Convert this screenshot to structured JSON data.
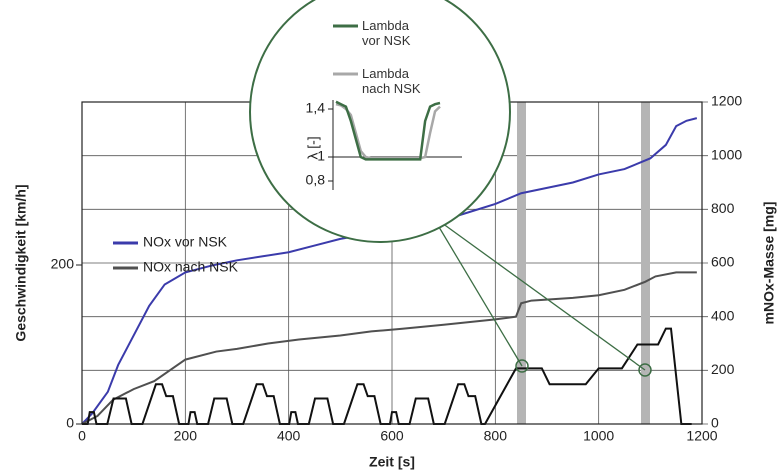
{
  "chart_data": [
    {
      "type": "line",
      "xlabel": "Zeit [s]",
      "ylabel": "Geschwindigkeit [km/h]",
      "y2label": "mNOx-Masse [mg]",
      "xlim": [
        0,
        1200
      ],
      "xticks": [
        0,
        200,
        400,
        600,
        800,
        1000,
        1200
      ],
      "ylim": [
        0,
        405
      ],
      "yticks": [
        0,
        200
      ],
      "y2lim": [
        0,
        1200
      ],
      "y2ticks": [
        0,
        200,
        400,
        600,
        800,
        1000,
        1200
      ],
      "grid": true,
      "series": [
        {
          "name": "NOx vor NSK",
          "color": "#3b3bab",
          "axis": "y2",
          "legend": true,
          "x": [
            0,
            20,
            50,
            70,
            100,
            130,
            160,
            200,
            250,
            300,
            350,
            400,
            450,
            500,
            560,
            620,
            660,
            700,
            750,
            800,
            850,
            900,
            950,
            1000,
            1050,
            1100,
            1130,
            1150,
            1170,
            1190
          ],
          "values": [
            0,
            40,
            120,
            220,
            330,
            440,
            520,
            565,
            590,
            610,
            625,
            640,
            665,
            690,
            710,
            720,
            740,
            760,
            790,
            820,
            860,
            880,
            900,
            930,
            950,
            990,
            1040,
            1110,
            1130,
            1140
          ]
        },
        {
          "name": "NOx nach NSK",
          "color": "#505050",
          "axis": "y2",
          "legend": true,
          "x": [
            0,
            30,
            60,
            100,
            140,
            200,
            260,
            300,
            360,
            420,
            500,
            560,
            620,
            700,
            800,
            840,
            850,
            870,
            950,
            1000,
            1050,
            1090,
            1110,
            1150,
            1190
          ],
          "values": [
            0,
            30,
            90,
            130,
            160,
            240,
            270,
            280,
            300,
            315,
            330,
            345,
            355,
            370,
            390,
            400,
            450,
            460,
            470,
            480,
            500,
            530,
            550,
            565,
            565
          ]
        },
        {
          "color": "#111111",
          "axis": "y",
          "legend": false,
          "x": [
            0,
            11,
            15,
            23,
            28,
            49,
            61,
            85,
            96,
            117,
            143,
            155,
            163,
            176,
            188,
            195,
            206,
            210,
            218,
            223,
            244,
            256,
            280,
            291,
            312,
            338,
            350,
            358,
            371,
            383,
            390,
            401,
            405,
            413,
            418,
            439,
            451,
            475,
            486,
            507,
            533,
            545,
            553,
            566,
            578,
            585,
            596,
            600,
            608,
            613,
            634,
            646,
            670,
            681,
            702,
            728,
            740,
            748,
            761,
            773,
            780,
            840,
            890,
            905,
            975,
            1000,
            1045,
            1075,
            1115,
            1130,
            1140,
            1160,
            1180
          ],
          "values": [
            0,
            0,
            15,
            15,
            0,
            0,
            32,
            32,
            0,
            0,
            50,
            50,
            35,
            35,
            0,
            0,
            0,
            15,
            15,
            0,
            0,
            32,
            32,
            0,
            0,
            50,
            50,
            35,
            35,
            0,
            0,
            0,
            15,
            15,
            0,
            0,
            32,
            32,
            0,
            0,
            50,
            50,
            35,
            35,
            0,
            0,
            0,
            15,
            15,
            0,
            0,
            32,
            32,
            0,
            0,
            50,
            50,
            35,
            35,
            0,
            0,
            70,
            70,
            50,
            50,
            70,
            70,
            100,
            100,
            120,
            120,
            0,
            0
          ]
        }
      ]
    },
    {
      "type": "line",
      "ylabel": "λ [-]",
      "ylim": [
        0.7,
        1.5
      ],
      "yticks": [
        {
          "value": 0.8,
          "label": "0,8"
        },
        1,
        {
          "value": 1.4,
          "label": "1,4"
        }
      ],
      "series": [
        {
          "name": "Lambda vor NSK",
          "color": "#3d6e45",
          "values": [
            1.46,
            1.44,
            1.42,
            1.3,
            1.15,
            1.0,
            0.98,
            0.98,
            0.98,
            0.98,
            0.98,
            0.98,
            0.98,
            0.98,
            0.98,
            0.98,
            0.98,
            0.98,
            1.3,
            1.42,
            1.44,
            1.45
          ]
        },
        {
          "name": "Lambda nach NSK",
          "color": "#a8a8a8",
          "values": [
            1.44,
            1.43,
            1.4,
            1.35,
            1.2,
            1.05,
            1.0,
            0.99,
            0.99,
            0.99,
            0.99,
            0.99,
            0.99,
            0.99,
            0.99,
            0.99,
            0.99,
            0.99,
            1.0,
            1.2,
            1.38,
            1.42
          ]
        }
      ]
    }
  ]
}
